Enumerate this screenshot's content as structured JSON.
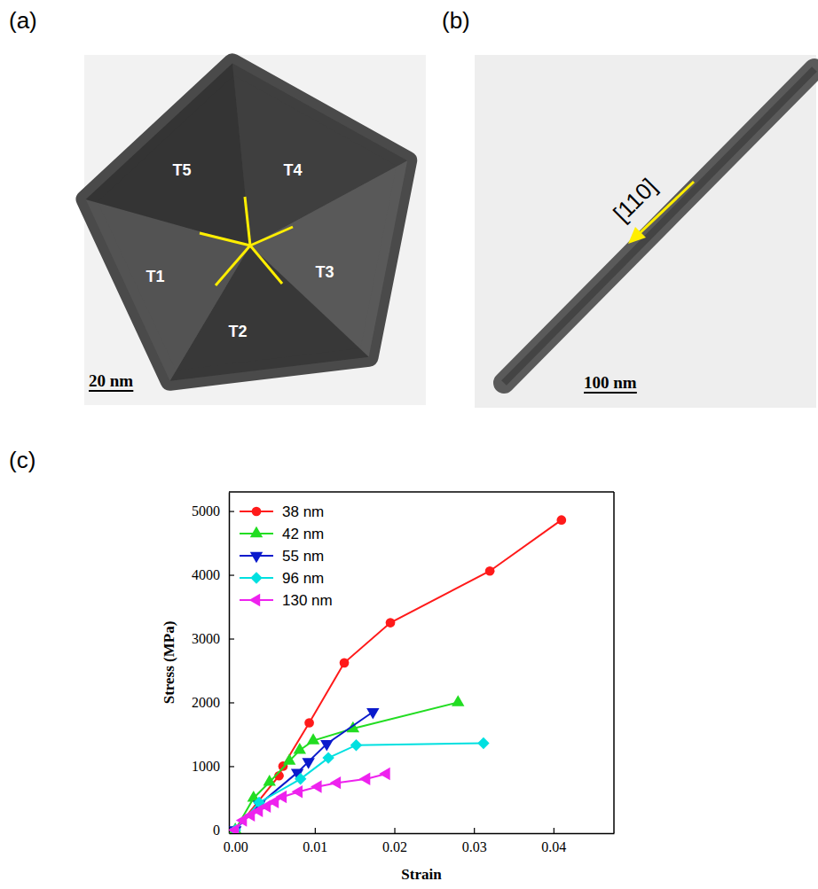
{
  "figure": {
    "panels": [
      {
        "label": "(a)",
        "annotations": [
          "T1",
          "T2",
          "T3",
          "T4",
          "T5"
        ],
        "scale_bar": "20 nm"
      },
      {
        "label": "(b)",
        "annotations": [
          "[110]"
        ],
        "scale_bar": "100 nm"
      },
      {
        "label": "(c)"
      }
    ]
  },
  "chart_data": {
    "type": "line",
    "x_label": "Strain",
    "y_label": "Stress (MPa)",
    "xlim": [
      -0.0008,
      0.0476
    ],
    "ylim": [
      -50,
      5300
    ],
    "xticks": [
      {
        "value": 0,
        "label": "0.00"
      },
      {
        "value": 0.01,
        "label": "0.01"
      },
      {
        "value": 0.02,
        "label": "0.02"
      },
      {
        "value": 0.03,
        "label": "0.03"
      },
      {
        "value": 0.04,
        "label": "0.04"
      }
    ],
    "yticks": [
      0,
      1000,
      2000,
      3000,
      4000,
      5000
    ],
    "legend": "upper left",
    "series": [
      {
        "name": "38 nm",
        "color": "#ff1a1a",
        "marker": "circle",
        "line_style": "solid",
        "x": [
          0,
          0.0055,
          0.006,
          0.0093,
          0.0137,
          0.0195,
          0.032,
          0.041
        ],
        "values": [
          0,
          850,
          1000,
          1680,
          2620,
          3250,
          4060,
          4860
        ]
      },
      {
        "name": "42 nm",
        "color": "#22dd22",
        "marker": "triangle-up",
        "line_style": "solid",
        "x": [
          0,
          0.0023,
          0.0043,
          0.0068,
          0.0081,
          0.0098,
          0.0148,
          0.028
        ],
        "values": [
          0,
          500,
          750,
          1080,
          1250,
          1400,
          1590,
          2000
        ]
      },
      {
        "name": "55 nm",
        "color": "#0a1acc",
        "marker": "triangle-down",
        "line_style": "solid",
        "x": [
          0,
          0.003,
          0.0078,
          0.0092,
          0.0115,
          0.0173
        ],
        "values": [
          0,
          400,
          900,
          1070,
          1350,
          1850
        ]
      },
      {
        "name": "96 nm",
        "color": "#00e0e0",
        "marker": "diamond",
        "line_style": "solid",
        "x": [
          0,
          0.003,
          0.0082,
          0.0117,
          0.0152,
          0.0312
        ],
        "values": [
          0,
          430,
          800,
          1130,
          1330,
          1360
        ]
      },
      {
        "name": "130 nm",
        "color": "#ee22ee",
        "marker": "triangle-left",
        "line_style": "solid",
        "x": [
          0,
          0.001,
          0.002,
          0.003,
          0.004,
          0.005,
          0.006,
          0.008,
          0.0104,
          0.0128,
          0.0165,
          0.019
        ],
        "values": [
          0,
          150,
          230,
          300,
          370,
          440,
          520,
          600,
          680,
          740,
          800,
          880
        ]
      }
    ]
  }
}
